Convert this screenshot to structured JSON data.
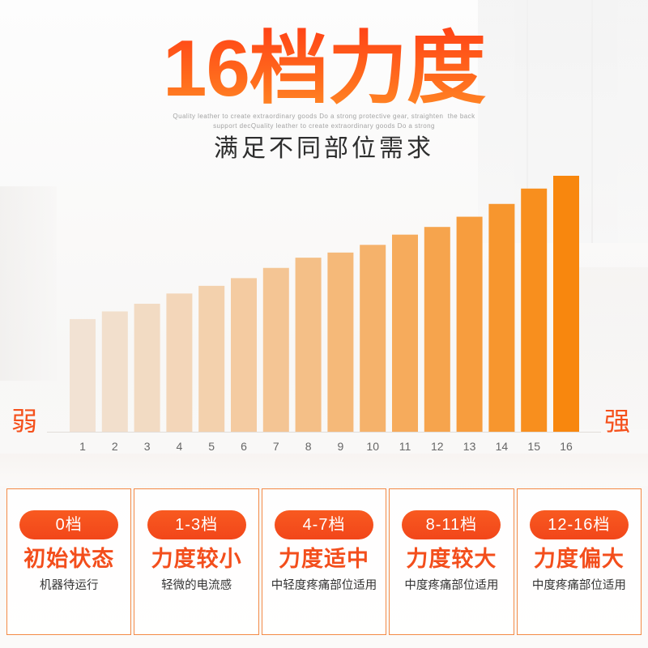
{
  "header": {
    "title": "16档力度",
    "tagline": [
      "Quality leather to create extraordinary goods Do a strong protective gear, straighten  the back",
      "support decQuality leather to create extraordinary goods Do a strong"
    ],
    "subtitle": "满足不同部位需求"
  },
  "colors": {
    "accent": "#f5511c",
    "bar_start": "#f2e2d3",
    "bar_end": "#f8870e",
    "card_border": "#f38a46",
    "badge": "#f5501b"
  },
  "chart_data": {
    "type": "bar",
    "categories": [
      "1",
      "2",
      "3",
      "4",
      "5",
      "6",
      "7",
      "8",
      "9",
      "10",
      "11",
      "12",
      "13",
      "14",
      "15",
      "16"
    ],
    "values": [
      44,
      47,
      50,
      54,
      57,
      60,
      64,
      68,
      70,
      73,
      77,
      80,
      84,
      89,
      95,
      100
    ],
    "ylim": [
      0,
      100
    ],
    "scale_labels": {
      "low": "弱",
      "high": "强"
    }
  },
  "levels": [
    {
      "badge": "0档",
      "title": "初始状态",
      "desc": "机器待运行"
    },
    {
      "badge": "1-3档",
      "title": "力度较小",
      "desc": "轻微的电流感"
    },
    {
      "badge": "4-7档",
      "title": "力度适中",
      "desc": "中轻度疼痛部位适用"
    },
    {
      "badge": "8-11档",
      "title": "力度较大",
      "desc": "中度疼痛部位适用"
    },
    {
      "badge": "12-16档",
      "title": "力度偏大",
      "desc": "中度疼痛部位适用"
    }
  ]
}
